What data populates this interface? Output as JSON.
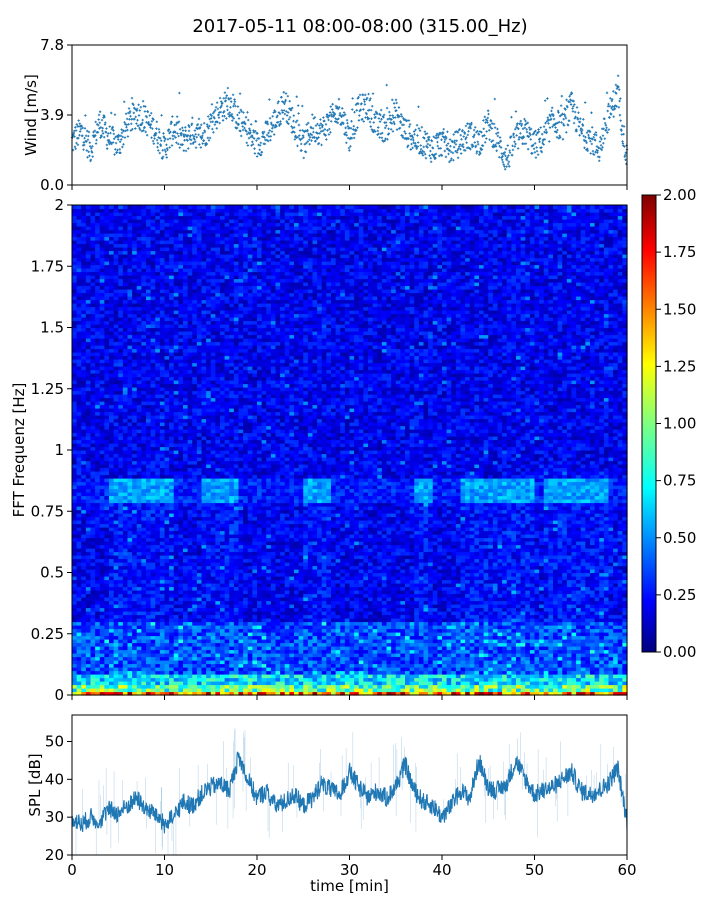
{
  "title": "2017-05-11 08:00-08:00 (315.00_Hz)",
  "chart_data": [
    {
      "name": "wind",
      "type": "scatter",
      "ylabel": "Wind [m/s]",
      "ylim": [
        0.0,
        7.8
      ],
      "yticks": [
        "0.0",
        "3.9",
        "7.8"
      ],
      "xlim": [
        0,
        60
      ],
      "color": "#1f77b4",
      "anchors": [
        [
          0,
          2.4
        ],
        [
          1,
          3.0
        ],
        [
          2,
          2.0
        ],
        [
          3,
          3.5
        ],
        [
          4,
          2.6
        ],
        [
          5,
          2.2
        ],
        [
          6,
          3.4
        ],
        [
          7,
          4.0
        ],
        [
          8,
          3.6
        ],
        [
          9,
          3.0
        ],
        [
          10,
          2.0
        ],
        [
          11,
          3.2
        ],
        [
          12,
          2.4
        ],
        [
          13,
          3.0
        ],
        [
          14,
          2.6
        ],
        [
          15,
          3.4
        ],
        [
          16,
          4.2
        ],
        [
          17,
          4.6
        ],
        [
          18,
          3.6
        ],
        [
          19,
          3.0
        ],
        [
          20,
          2.2
        ],
        [
          21,
          2.8
        ],
        [
          22,
          3.6
        ],
        [
          23,
          4.6
        ],
        [
          24,
          3.4
        ],
        [
          25,
          2.2
        ],
        [
          26,
          3.2
        ],
        [
          27,
          3.0
        ],
        [
          28,
          3.6
        ],
        [
          29,
          4.2
        ],
        [
          30,
          2.6
        ],
        [
          31,
          4.2
        ],
        [
          32,
          4.4
        ],
        [
          33,
          3.2
        ],
        [
          34,
          3.2
        ],
        [
          35,
          4.0
        ],
        [
          36,
          3.0
        ],
        [
          37,
          2.6
        ],
        [
          38,
          2.4
        ],
        [
          39,
          2.0
        ],
        [
          40,
          2.4
        ],
        [
          41,
          2.0
        ],
        [
          42,
          2.4
        ],
        [
          43,
          2.8
        ],
        [
          44,
          2.4
        ],
        [
          45,
          3.4
        ],
        [
          46,
          2.4
        ],
        [
          47,
          1.4
        ],
        [
          48,
          2.6
        ],
        [
          49,
          3.0
        ],
        [
          50,
          2.2
        ],
        [
          51,
          2.6
        ],
        [
          52,
          3.6
        ],
        [
          53,
          3.2
        ],
        [
          54,
          4.4
        ],
        [
          55,
          3.0
        ],
        [
          56,
          2.6
        ],
        [
          57,
          2.0
        ],
        [
          58,
          3.8
        ],
        [
          59,
          5.2
        ],
        [
          60,
          1.4
        ]
      ]
    },
    {
      "name": "spectrogram",
      "type": "heatmap",
      "ylabel": "FFT Frequenz [Hz]",
      "ylim": [
        0,
        2
      ],
      "yticks": [
        "0",
        "0.25",
        "0.5",
        "0.75",
        "1",
        "1.25",
        "1.5",
        "1.75",
        "2"
      ],
      "xlim": [
        0,
        60
      ],
      "colorbar": {
        "range": [
          0.0,
          2.0
        ],
        "ticks": [
          "0.00",
          "0.25",
          "0.50",
          "0.75",
          "1.00",
          "1.25",
          "1.50",
          "1.75",
          "2.00"
        ],
        "colormap": "jet"
      },
      "features": [
        {
          "freq_range": [
            0.0,
            0.02
          ],
          "level": "1.2-2.0"
        },
        {
          "freq_range": [
            0.02,
            0.08
          ],
          "level": "0.6-1.0"
        },
        {
          "freq_range": [
            0.08,
            0.3
          ],
          "level": "0.35-0.55"
        },
        {
          "freq_range": [
            0.78,
            0.88
          ],
          "level": "0.45-0.7"
        },
        {
          "freq_range": [
            0.3,
            2.0
          ],
          "level": "0.1-0.3"
        }
      ]
    },
    {
      "name": "spl",
      "type": "line",
      "ylabel": "SPL [dB]",
      "xlabel": "time [min]",
      "ylim": [
        20,
        57
      ],
      "yticks": [
        "20",
        "30",
        "40",
        "50"
      ],
      "xlim": [
        0,
        60
      ],
      "xticks": [
        "0",
        "10",
        "20",
        "30",
        "40",
        "50",
        "60"
      ],
      "color": "#1f77b4",
      "anchors": [
        [
          0,
          30
        ],
        [
          1,
          28
        ],
        [
          2,
          30
        ],
        [
          3,
          29
        ],
        [
          4,
          32
        ],
        [
          5,
          31
        ],
        [
          6,
          33
        ],
        [
          7,
          35
        ],
        [
          8,
          32
        ],
        [
          9,
          31
        ],
        [
          10,
          28
        ],
        [
          11,
          30
        ],
        [
          12,
          34
        ],
        [
          13,
          33
        ],
        [
          14,
          36
        ],
        [
          15,
          38
        ],
        [
          16,
          39
        ],
        [
          17,
          37
        ],
        [
          18,
          46
        ],
        [
          19,
          40
        ],
        [
          20,
          35
        ],
        [
          21,
          37
        ],
        [
          22,
          33
        ],
        [
          23,
          34
        ],
        [
          24,
          36
        ],
        [
          25,
          33
        ],
        [
          26,
          35
        ],
        [
          27,
          39
        ],
        [
          28,
          37
        ],
        [
          29,
          36
        ],
        [
          30,
          42
        ],
        [
          31,
          38
        ],
        [
          32,
          35
        ],
        [
          33,
          37
        ],
        [
          34,
          35
        ],
        [
          35,
          38
        ],
        [
          36,
          44
        ],
        [
          37,
          37
        ],
        [
          38,
          34
        ],
        [
          39,
          33
        ],
        [
          40,
          30
        ],
        [
          41,
          33
        ],
        [
          42,
          37
        ],
        [
          43,
          35
        ],
        [
          44,
          45
        ],
        [
          45,
          38
        ],
        [
          46,
          37
        ],
        [
          47,
          39
        ],
        [
          48,
          45
        ],
        [
          49,
          40
        ],
        [
          50,
          36
        ],
        [
          51,
          37
        ],
        [
          52,
          38
        ],
        [
          53,
          40
        ],
        [
          54,
          42
        ],
        [
          55,
          37
        ],
        [
          56,
          36
        ],
        [
          57,
          37
        ],
        [
          58,
          39
        ],
        [
          59,
          43
        ],
        [
          60,
          29
        ]
      ]
    }
  ]
}
